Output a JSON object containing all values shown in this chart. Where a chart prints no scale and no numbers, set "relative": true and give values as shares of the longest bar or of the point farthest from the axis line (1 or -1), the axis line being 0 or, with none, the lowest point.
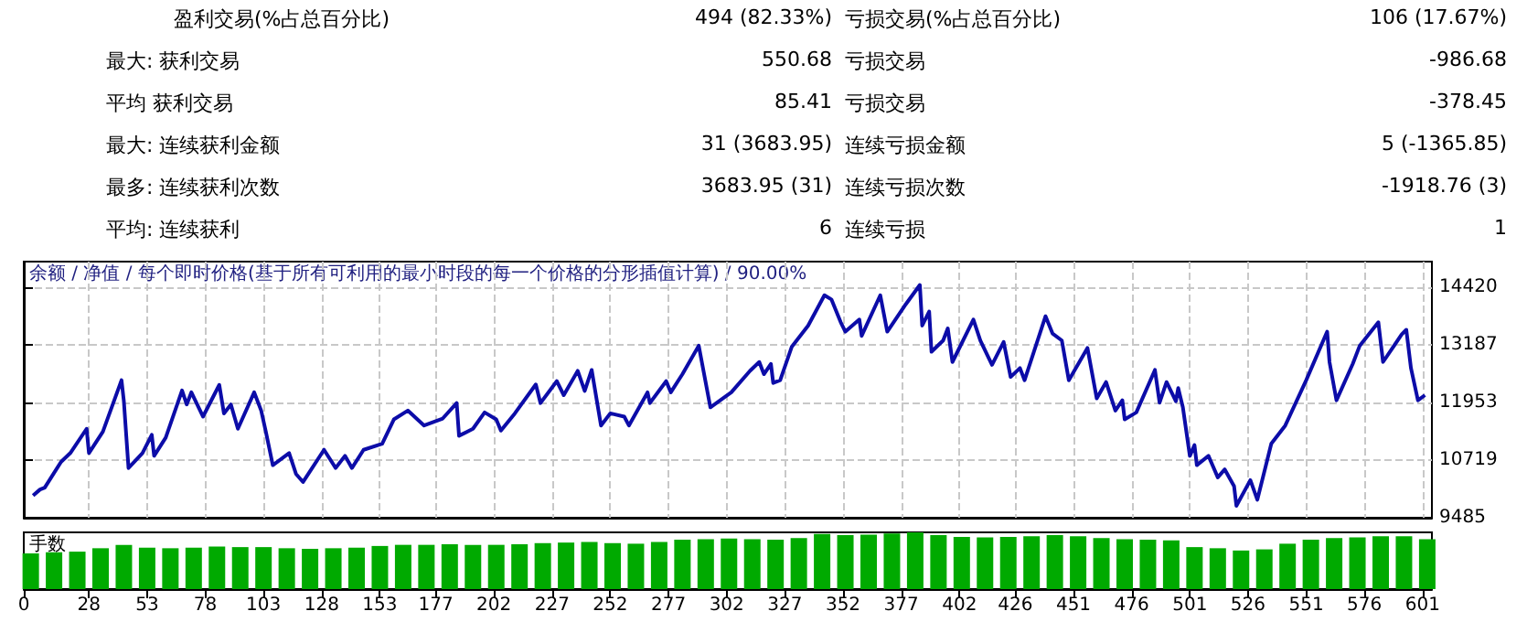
{
  "chart_data": [
    {
      "type": "other",
      "annotations": [
        "盈利交易(%占总百分比)",
        "494 (82.33%)",
        "亏损交易(%占总百分比)",
        "106 (17.67%)",
        "最大: 获利交易",
        "550.68",
        "亏损交易",
        "-986.68",
        "平均 获利交易",
        "85.41",
        "亏损交易",
        "-378.45",
        "最大: 连续获利金额",
        "31 (3683.95)",
        "连续亏损金额",
        "5 (-1365.85)",
        "最多: 连续获利次数",
        "3683.95 (31)",
        "连续亏损次数",
        "-1918.76 (3)",
        "平均: 连续获利",
        "6",
        "连续亏损",
        "1"
      ]
    },
    {
      "type": "line",
      "title": "余额 / 净值 / 每个即时价格(基于所有可利用的最小时段的每一个价格的分形插值计算) / 90.00%",
      "color": "#0c0ca8",
      "x": [
        4,
        7,
        9,
        16,
        20,
        27,
        28,
        34,
        42,
        43,
        45,
        51,
        55,
        56,
        61,
        68,
        70,
        72,
        77,
        84,
        86,
        89,
        92,
        99,
        102,
        104,
        107,
        114,
        117,
        120,
        129,
        134,
        138,
        141,
        146,
        154,
        159,
        165,
        172,
        180,
        186,
        187,
        193,
        198,
        203,
        205,
        211,
        220,
        222,
        229,
        232,
        238,
        241,
        244,
        248,
        252,
        258,
        260,
        268,
        269,
        276,
        278,
        283,
        290,
        295,
        304,
        312,
        316,
        318,
        321,
        322,
        325,
        330,
        337,
        344,
        347,
        351,
        353,
        359,
        360,
        368,
        371,
        379,
        385,
        386,
        389,
        390,
        395,
        397,
        399,
        408,
        411,
        416,
        421,
        424,
        428,
        430,
        439,
        442,
        446,
        449,
        457,
        461,
        465,
        469,
        472,
        473,
        478,
        486,
        488,
        491,
        495,
        496,
        498,
        501,
        503,
        504,
        509,
        513,
        516,
        520,
        521,
        527,
        530,
        536,
        542,
        551,
        560,
        561,
        564,
        571,
        574,
        582,
        584,
        592,
        594,
        596,
        599,
        602
      ],
      "values": [
        9960,
        10090,
        10130,
        10680,
        10870,
        11390,
        10870,
        11330,
        12430,
        11980,
        10550,
        10870,
        11260,
        10810,
        11200,
        12210,
        11910,
        12170,
        11650,
        12330,
        11720,
        11910,
        11390,
        12170,
        11780,
        11330,
        10610,
        10870,
        10420,
        10250,
        10940,
        10550,
        10810,
        10550,
        10940,
        11070,
        11590,
        11780,
        11460,
        11610,
        11940,
        11240,
        11390,
        11740,
        11590,
        11350,
        11720,
        12340,
        11940,
        12410,
        12110,
        12630,
        12200,
        12650,
        11460,
        11720,
        11650,
        11460,
        12170,
        11940,
        12410,
        12170,
        12560,
        13170,
        11850,
        12170,
        12630,
        12820,
        12560,
        12780,
        12370,
        12430,
        13150,
        13600,
        14250,
        14160,
        13670,
        13470,
        13730,
        13380,
        14250,
        13470,
        14060,
        14470,
        13600,
        13900,
        13040,
        13280,
        13540,
        12820,
        13730,
        13280,
        12760,
        13250,
        12500,
        12690,
        12430,
        13800,
        13430,
        13280,
        12430,
        13120,
        12040,
        12390,
        11780,
        12000,
        11590,
        11740,
        12650,
        11950,
        12390,
        11980,
        12260,
        11850,
        10810,
        11040,
        10610,
        10810,
        10350,
        10520,
        10160,
        9740,
        10290,
        9870,
        11070,
        11460,
        12430,
        13470,
        12820,
        12000,
        12780,
        13170,
        13670,
        12820,
        13410,
        13510,
        12690,
        12000,
        12110
      ],
      "xlim": [
        0,
        605
      ],
      "xticks": [
        0,
        28,
        53,
        78,
        103,
        128,
        153,
        177,
        202,
        227,
        252,
        277,
        302,
        327,
        352,
        377,
        402,
        426,
        451,
        476,
        501,
        526,
        551,
        576,
        601
      ],
      "ylim": [
        9485,
        14970
      ],
      "yticks": [
        9485,
        10719,
        11953,
        13187,
        14420
      ],
      "grid": true,
      "tick_labels": "y"
    },
    {
      "type": "bar",
      "ylabel": "手数",
      "color": "#00aa00",
      "relative": true,
      "x": [
        3,
        13,
        23,
        33,
        43,
        53,
        63,
        73,
        83,
        93,
        103,
        113,
        123,
        133,
        143,
        153,
        163,
        173,
        183,
        193,
        203,
        213,
        223,
        233,
        243,
        253,
        263,
        273,
        283,
        293,
        303,
        313,
        323,
        333,
        343,
        353,
        363,
        373,
        383,
        393,
        403,
        413,
        423,
        433,
        443,
        453,
        463,
        473,
        483,
        493,
        503,
        513,
        523,
        533,
        543,
        553,
        563,
        573,
        583,
        593,
        603
      ],
      "values": [
        0.63,
        0.65,
        0.66,
        0.72,
        0.78,
        0.73,
        0.72,
        0.73,
        0.75,
        0.74,
        0.74,
        0.72,
        0.71,
        0.72,
        0.73,
        0.76,
        0.78,
        0.78,
        0.79,
        0.78,
        0.78,
        0.79,
        0.81,
        0.82,
        0.83,
        0.81,
        0.8,
        0.83,
        0.87,
        0.88,
        0.89,
        0.88,
        0.87,
        0.9,
        0.97,
        0.95,
        0.96,
        0.98,
        1,
        0.95,
        0.92,
        0.91,
        0.92,
        0.93,
        0.95,
        0.93,
        0.9,
        0.88,
        0.87,
        0.86,
        0.74,
        0.72,
        0.68,
        0.7,
        0.8,
        0.87,
        0.9,
        0.91,
        0.93,
        0.93,
        0.88
      ],
      "xlim": [
        0,
        605
      ],
      "xticks": [
        0,
        28,
        53,
        78,
        103,
        128,
        153,
        177,
        202,
        227,
        252,
        277,
        302,
        327,
        352,
        377,
        402,
        426,
        451,
        476,
        501,
        526,
        551,
        576,
        601
      ],
      "tick_labels": "x"
    }
  ]
}
